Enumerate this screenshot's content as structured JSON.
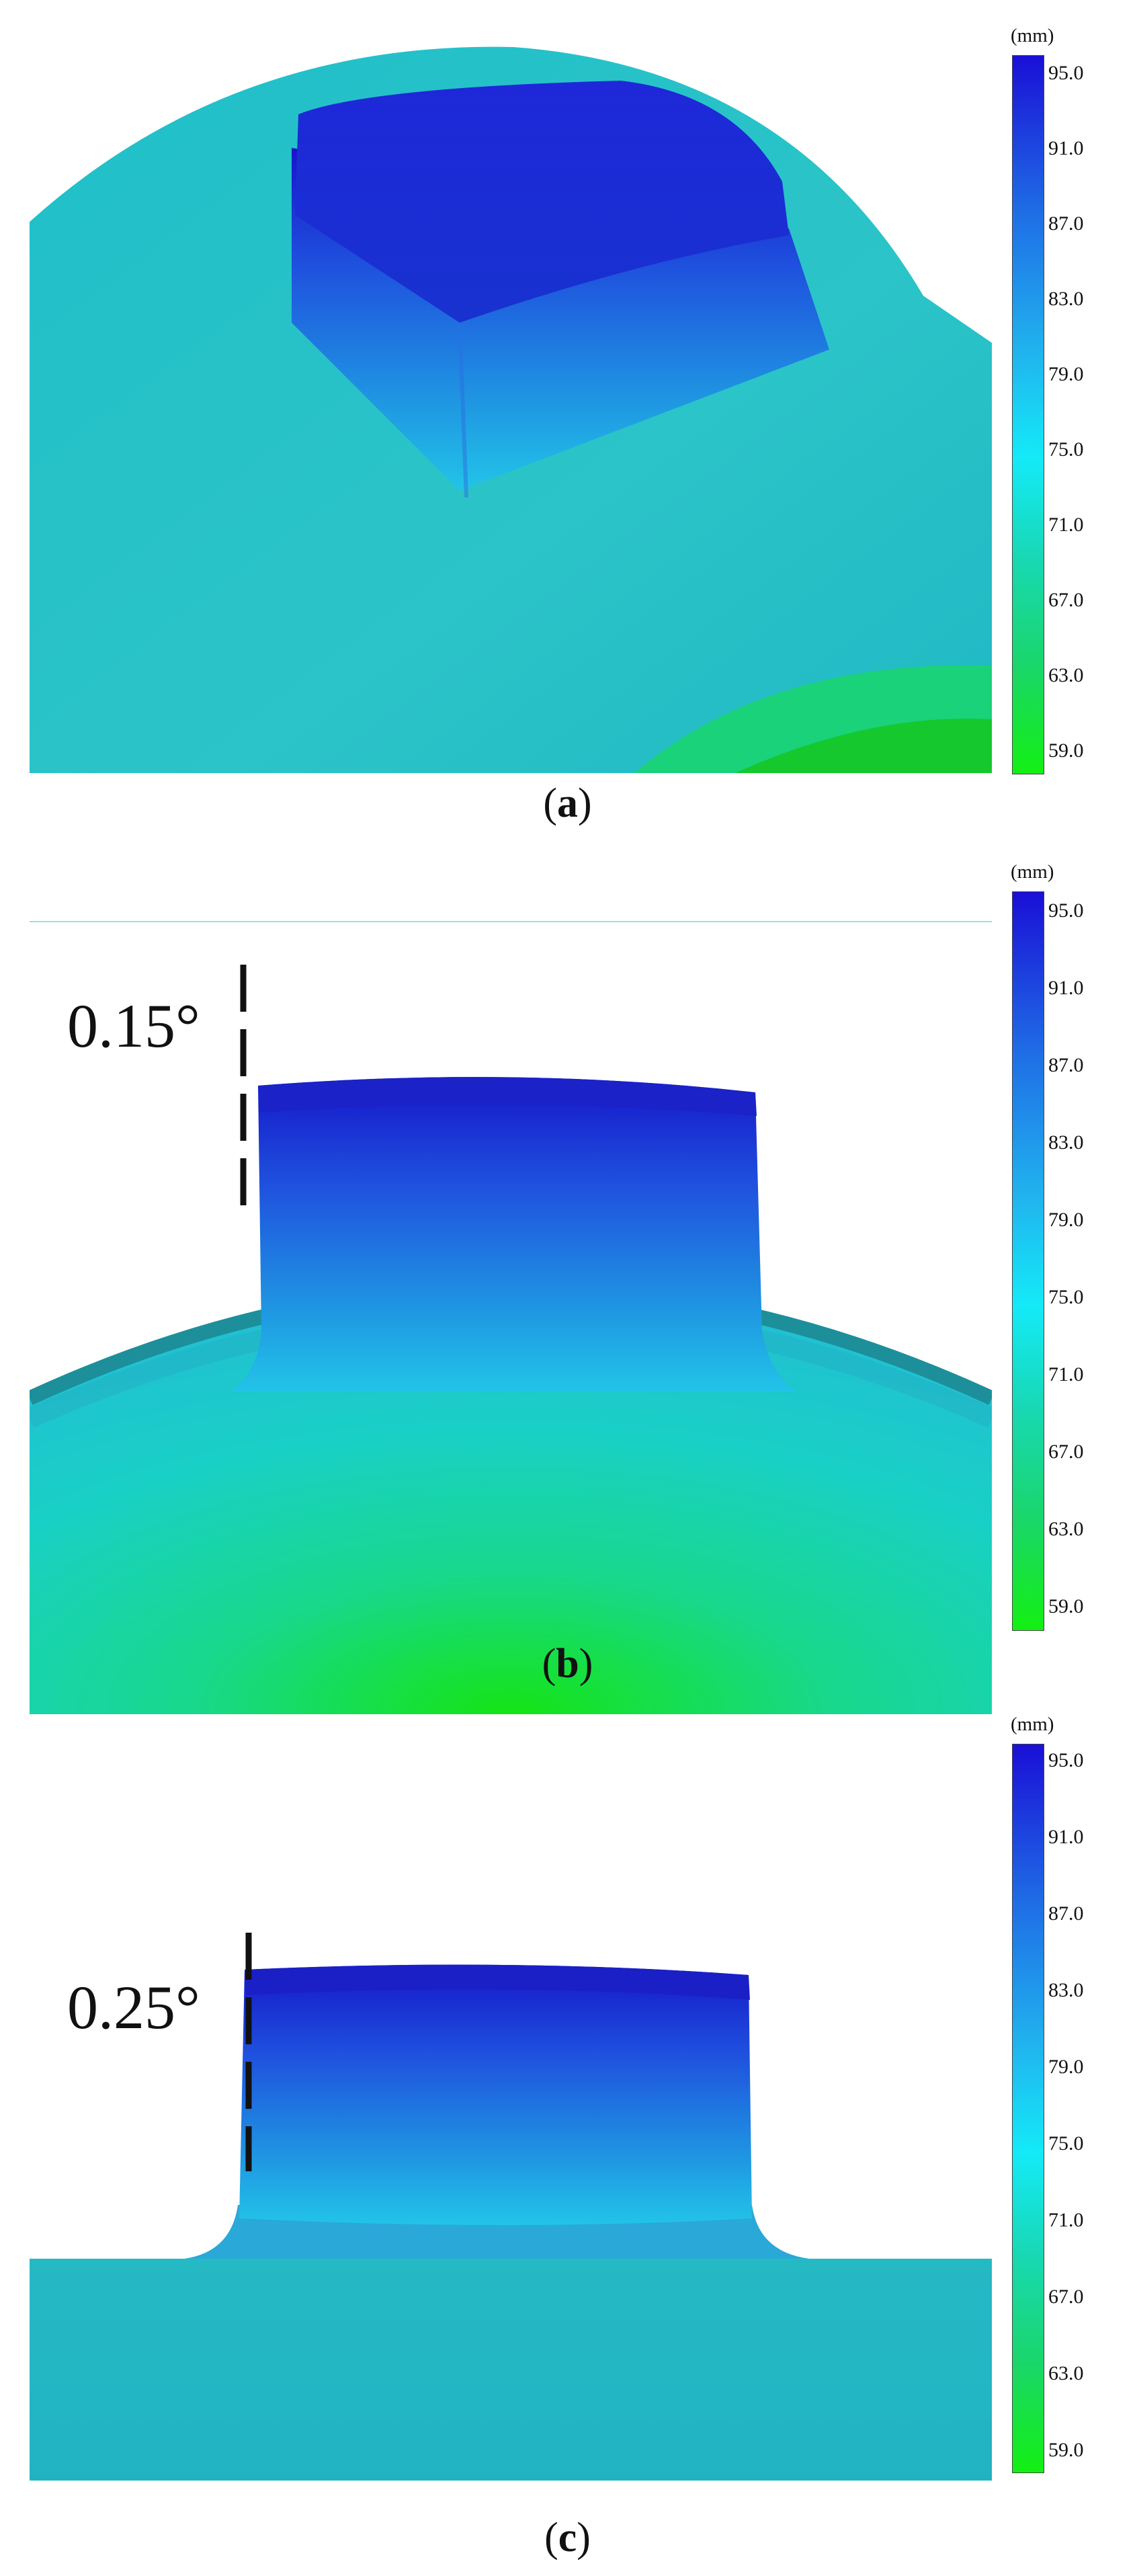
{
  "colorbar": {
    "unit": "(mm)",
    "ticks": [
      "95.0",
      "91.0",
      "87.0",
      "83.0",
      "79.0",
      "75.0",
      "71.0",
      "67.0",
      "63.0",
      "59.0"
    ],
    "range_mm": [
      59.0,
      95.0
    ],
    "colors": {
      "top": "#1a14d8",
      "upper": "#1f78e6",
      "mid": "#12dcf5",
      "lower": "#18d890",
      "bottom": "#14ee14"
    }
  },
  "panels": [
    {
      "id": "a",
      "caption_open": "(",
      "caption_letter": "a",
      "caption_close": ")"
    },
    {
      "id": "b",
      "caption_open": "(",
      "caption_letter": "b",
      "caption_close": ")",
      "angle": "0.15°"
    },
    {
      "id": "c",
      "caption_open": "(",
      "caption_letter": "c",
      "caption_close": ")",
      "angle": "0.25°"
    }
  ]
}
